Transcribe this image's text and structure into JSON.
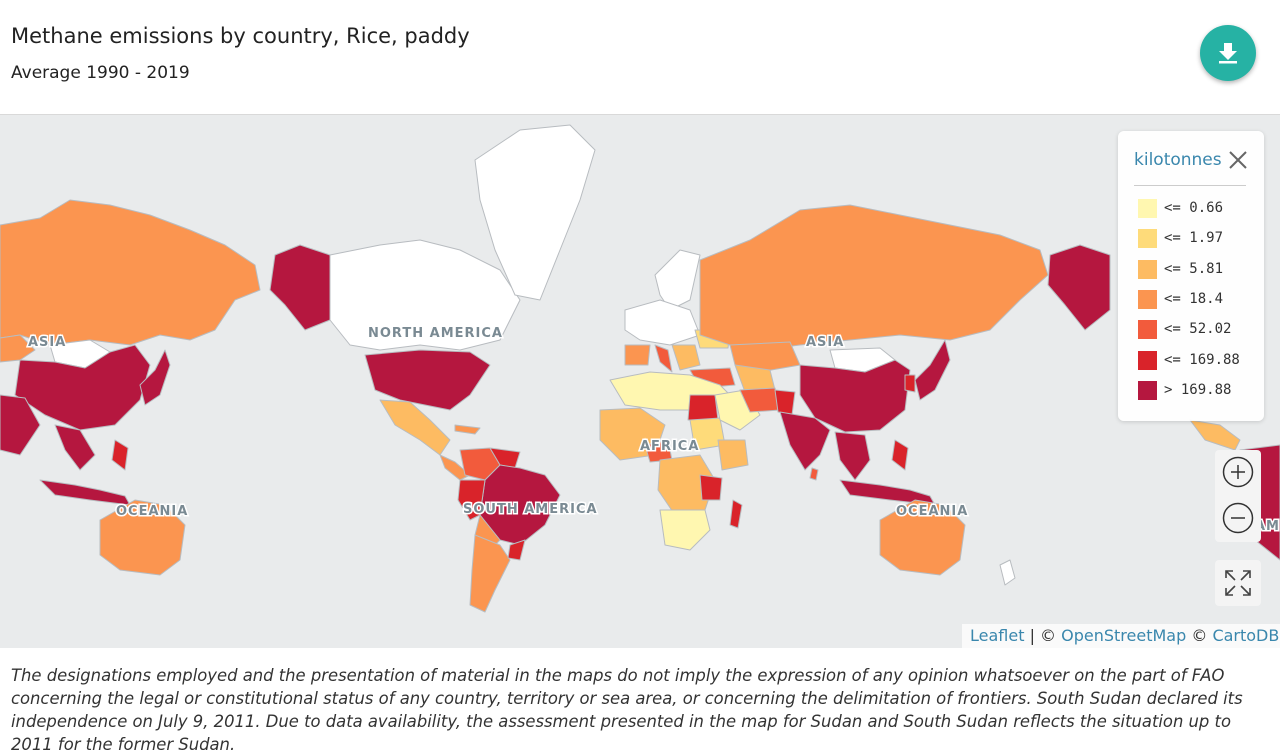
{
  "header": {
    "title": "Methane emissions by country, Rice, paddy",
    "subtitle": "Average 1990 - 2019",
    "download_icon": "download-icon"
  },
  "legend": {
    "title": "kilotonnes",
    "close_icon": "close-icon",
    "items": [
      {
        "label": "<= 0.66",
        "color": "#fff7b0"
      },
      {
        "label": "<= 1.97",
        "color": "#fedb7a"
      },
      {
        "label": "<= 5.81",
        "color": "#fdbb62"
      },
      {
        "label": "<= 18.4",
        "color": "#fb9550"
      },
      {
        "label": "<= 52.02",
        "color": "#f25b3c"
      },
      {
        "label": "<= 169.88",
        "color": "#d9232a"
      },
      {
        "label": "> 169.88",
        "color": "#b5173f"
      }
    ]
  },
  "map": {
    "region_labels": {
      "asia_left": "ASIA",
      "north_america": "NORTH AMERICA",
      "africa": "AFRICA",
      "south_america": "SOUTH AMERICA",
      "oceania_left": "OCEANIA",
      "asia_right": "ASIA",
      "oceania_right": "OCEANIA",
      "america_partial": "AME"
    },
    "colors": {
      "ocean": "#e9ebec",
      "no_data": "#ffffff",
      "border": "#b8bcc0"
    }
  },
  "controls": {
    "zoom_in_icon": "plus-icon",
    "zoom_out_icon": "minus-icon",
    "fullscreen_icon": "fullscreen-icon"
  },
  "attribution": {
    "leaflet": "Leaflet",
    "separator": " | © ",
    "osm": "OpenStreetMap",
    "copy": " © ",
    "carto": "CartoDB"
  },
  "disclaimer": "The designations employed and the presentation of material in the maps do not imply the expression of any opinion whatsoever on the part of FAO concerning the legal or constitutional status of any country, territory or sea area, or concerning the delimitation of frontiers. South Sudan declared its independence on July 9, 2011. Due to data availability, the assessment presented in the map for Sudan and South Sudan reflects the situation up to 2011 for the former Sudan."
}
